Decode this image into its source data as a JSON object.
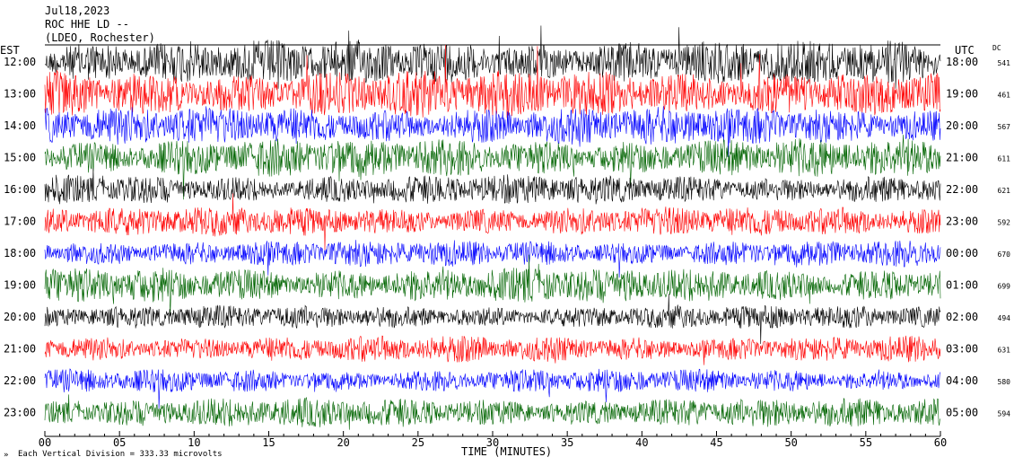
{
  "chart_data": {
    "type": "line",
    "title_lines": [
      "Jul18,2023",
      "ROC HHE LD --",
      "(LDEO, Rochester)"
    ],
    "left_axis_label": "EST",
    "right_axis_label": "UTC",
    "dc_label": "DC",
    "xlabel": "TIME (MINUTES)",
    "xlim": [
      0,
      60
    ],
    "x_ticks": [
      "00",
      "05",
      "10",
      "15",
      "20",
      "25",
      "30",
      "35",
      "40",
      "45",
      "50",
      "55",
      "60"
    ],
    "footnote": "Each Vertical Division =  333.33 microvolts",
    "colors": [
      "#000000",
      "#ff0000",
      "#0000ff",
      "#006400"
    ],
    "rows": [
      {
        "est": "12:00",
        "utc": "18:00",
        "dc": "541",
        "color": "#000000",
        "amp": 1.5
      },
      {
        "est": "13:00",
        "utc": "19:00",
        "dc": "461",
        "color": "#ff0000",
        "amp": 1.6
      },
      {
        "est": "14:00",
        "utc": "20:00",
        "dc": "567",
        "color": "#0000ff",
        "amp": 1.3
      },
      {
        "est": "15:00",
        "utc": "21:00",
        "dc": "611",
        "color": "#006400",
        "amp": 1.3
      },
      {
        "est": "16:00",
        "utc": "22:00",
        "dc": "621",
        "color": "#000000",
        "amp": 1.0
      },
      {
        "est": "17:00",
        "utc": "23:00",
        "dc": "592",
        "color": "#ff0000",
        "amp": 1.0
      },
      {
        "est": "18:00",
        "utc": "00:00",
        "dc": "670",
        "color": "#0000ff",
        "amp": 0.9
      },
      {
        "est": "19:00",
        "utc": "01:00",
        "dc": "699",
        "color": "#006400",
        "amp": 1.2
      },
      {
        "est": "20:00",
        "utc": "02:00",
        "dc": "494",
        "color": "#000000",
        "amp": 0.8
      },
      {
        "est": "21:00",
        "utc": "03:00",
        "dc": "631",
        "color": "#ff0000",
        "amp": 0.9
      },
      {
        "est": "22:00",
        "utc": "04:00",
        "dc": "580",
        "color": "#0000ff",
        "amp": 0.8
      },
      {
        "est": "23:00",
        "utc": "05:00",
        "dc": "594",
        "color": "#006400",
        "amp": 1.0
      }
    ]
  }
}
